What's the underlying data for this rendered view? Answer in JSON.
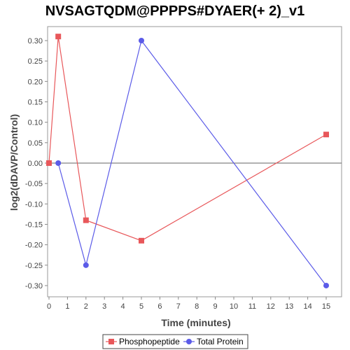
{
  "chart_data": {
    "type": "line",
    "title": "NVSAGTQDM@PPPPS#DYAER(+ 2)_v1",
    "xlabel": "Time (minutes)",
    "ylabel": "log2(dDAVP/Control)",
    "xlim": [
      0,
      16
    ],
    "ylim": [
      -0.33,
      0.33
    ],
    "x_ticks": [
      0,
      1,
      2,
      3,
      4,
      5,
      6,
      7,
      8,
      9,
      10,
      11,
      12,
      13,
      14,
      15
    ],
    "y_ticks": [
      "0.30",
      "0.25",
      "0.20",
      "0.15",
      "0.10",
      "0.05",
      "0.00",
      "-0.05",
      "-0.10",
      "-0.15",
      "-0.20",
      "-0.25",
      "-0.30"
    ],
    "grid": false,
    "legend_position": "bottom",
    "zero_line": true,
    "series": [
      {
        "name": "Phosphopeptide",
        "color": "#e8575a",
        "marker": "square",
        "x": [
          0,
          0.5,
          2,
          5,
          15
        ],
        "y": [
          0.0,
          0.31,
          -0.14,
          -0.19,
          0.07
        ]
      },
      {
        "name": "Total Protein",
        "color": "#5b5be8",
        "marker": "circle",
        "x": [
          0.5,
          2,
          5,
          15
        ],
        "y": [
          0.0,
          -0.25,
          0.3,
          -0.3
        ]
      }
    ]
  }
}
